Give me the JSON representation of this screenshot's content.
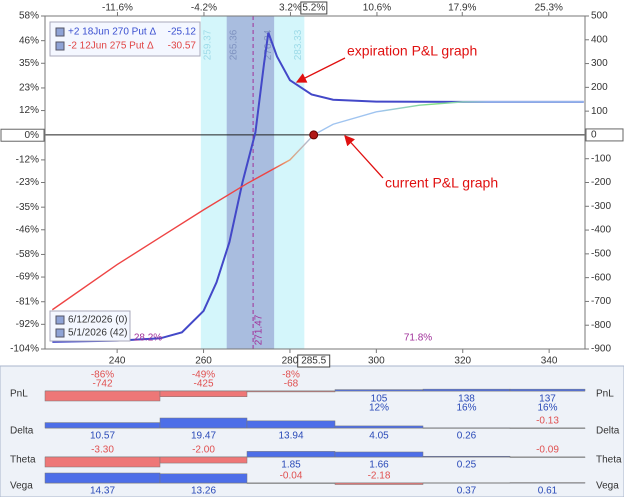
{
  "chart_data": [
    {
      "type": "line",
      "xlim": [
        223.3,
        348.3
      ],
      "xticks": [
        240,
        260,
        280,
        300,
        320,
        340
      ],
      "x2lim": [
        -17.8,
        28.4
      ],
      "x2ticks": [
        {
          "value": -11.6,
          "label": "-11.6%"
        },
        {
          "value": -4.2,
          "label": "-4.2%"
        },
        {
          "value": 3.2,
          "label": "3.2%"
        },
        {
          "value": 10.6,
          "label": "10.6%"
        },
        {
          "value": 17.9,
          "label": "17.9%"
        },
        {
          "value": 25.3,
          "label": "25.3%"
        }
      ],
      "x2_marker": {
        "value": 5.2,
        "label": "5.2%"
      },
      "ylim": [
        -104,
        58
      ],
      "yticks": [
        {
          "value": 58,
          "label": "58%"
        },
        {
          "value": 46,
          "label": "46%"
        },
        {
          "value": 35,
          "label": "35%"
        },
        {
          "value": 23,
          "label": "23%"
        },
        {
          "value": 12,
          "label": "12%"
        },
        {
          "value": 0,
          "label": "0%"
        },
        {
          "value": -12,
          "label": "-12%"
        },
        {
          "value": -23,
          "label": "-23%"
        },
        {
          "value": -35,
          "label": "-35%"
        },
        {
          "value": -46,
          "label": "-46%"
        },
        {
          "value": -58,
          "label": "-58%"
        },
        {
          "value": -69,
          "label": "-69%"
        },
        {
          "value": -81,
          "label": "-81%"
        },
        {
          "value": -92,
          "label": "-92%"
        },
        {
          "value": -104,
          "label": "-104%"
        }
      ],
      "y2lim": [
        -900,
        500
      ],
      "y2ticks": [
        500,
        400,
        300,
        200,
        100,
        0,
        -100,
        -200,
        -300,
        -400,
        -500,
        -600,
        -700,
        -800,
        -900
      ],
      "ranges": [
        {
          "start": 259.37,
          "end": 283.33,
          "color": "#d4f6fb"
        },
        {
          "start": 265.36,
          "end": 276.34,
          "color": "#a9bddf"
        }
      ],
      "expected_price": 271.47,
      "breakeven": {
        "x": 285.5,
        "y": 0
      },
      "probability_labels": [
        "28.2%",
        "71.8%"
      ],
      "legend": [
        {
          "label": "+2 18Jun 270 Put Δ",
          "delta": -25.12,
          "color": "#3a4fd0"
        },
        {
          "label": "-2 12Jun 275 Put Δ",
          "delta": -30.57,
          "color": "#e04444"
        }
      ],
      "annotations": [
        "expiration P&L graph",
        "current P&L graph"
      ],
      "series": [
        {
          "name": "6/12/2026 (0)",
          "color": "#4348c8",
          "axis": "y2",
          "x": [
            225,
            240,
            250,
            255,
            260,
            263,
            266,
            269,
            272,
            274,
            275,
            277,
            280,
            285,
            290,
            300,
            320,
            348
          ],
          "values": [
            -870,
            -865,
            -855,
            -830,
            -740,
            -620,
            -450,
            -200,
            10,
            300,
            430,
            330,
            230,
            170,
            148,
            140,
            139,
            139
          ]
        },
        {
          "name": "5/1/2026 (42)",
          "color": "#ee4444",
          "axis": "y2",
          "x": [
            225,
            240,
            250,
            260,
            270,
            280,
            285.5,
            290,
            300,
            310,
            320,
            348
          ],
          "values": [
            -735,
            -545,
            -430,
            -315,
            -205,
            -105,
            0,
            45,
            97,
            125,
            139,
            139
          ]
        }
      ]
    },
    {
      "type": "bar-grid",
      "colors": {
        "positive": "#4d6ee8",
        "negative": "#ee7777"
      },
      "series": [
        {
          "name": "PnL",
          "values": [
            -742,
            -425,
            -68,
            105,
            138,
            137
          ],
          "percent_labels": [
            "-86%",
            "-49%",
            "-8%",
            "12%",
            "16%",
            "16%"
          ]
        },
        {
          "name": "Delta",
          "values": [
            10.57,
            19.47,
            13.94,
            4.05,
            0.26,
            -0.13
          ]
        },
        {
          "name": "Theta",
          "values": [
            -3.3,
            -2,
            1.85,
            1.66,
            0.25,
            -0.09
          ],
          "value_labels": [
            "-3.30",
            "-2.00",
            "1.85",
            "1.66",
            "0.25",
            "-0.09"
          ]
        },
        {
          "name": "Vega",
          "values": [
            14.37,
            13.26,
            -0.04,
            -2.18,
            0.37,
            0.61
          ]
        }
      ]
    }
  ]
}
